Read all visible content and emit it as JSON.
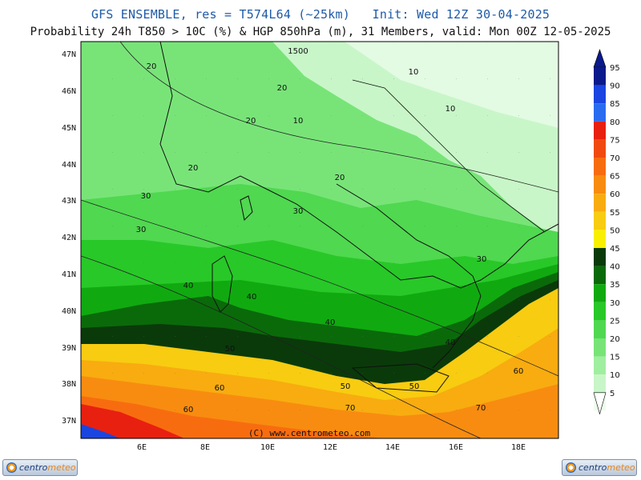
{
  "header": {
    "line1": "GFS ENSEMBLE, res = T574L64 (~25km)   Init: Wed 12Z 30-04-2025",
    "line2": "Probability 24h T850 > 10C (%) & HGP 850hPa (m), 31 Members, valid: Mon 00Z 12-05-2025"
  },
  "map": {
    "lat_labels": [
      "47N",
      "46N",
      "45N",
      "44N",
      "43N",
      "42N",
      "41N",
      "40N",
      "39N",
      "38N",
      "37N"
    ],
    "lon_labels": [
      "6E",
      "8E",
      "10E",
      "12E",
      "14E",
      "16E",
      "18E"
    ],
    "contour_labels": [
      "1500",
      "20",
      "20",
      "20",
      "10",
      "10",
      "10",
      "20",
      "20",
      "30",
      "30",
      "30",
      "30",
      "40",
      "40",
      "40",
      "40",
      "50",
      "50",
      "50",
      "60",
      "60",
      "60",
      "70",
      "70"
    ],
    "copyright": "(C) www.centrometeo.com"
  },
  "colorbar": {
    "ticks": [
      "95",
      "90",
      "85",
      "80",
      "75",
      "70",
      "65",
      "60",
      "55",
      "50",
      "45",
      "40",
      "35",
      "30",
      "25",
      "20",
      "15",
      "10",
      "5"
    ],
    "colors": [
      "#0a1a8c",
      "#1a45e0",
      "#2a6cf0",
      "#e82010",
      "#f04a10",
      "#f86c10",
      "#f88c10",
      "#f8ac10",
      "#f8cc10",
      "#f8f000",
      "#0a3a0a",
      "#0a6a0a",
      "#10aa10",
      "#28c828",
      "#50d850",
      "#78e478",
      "#a0eea0",
      "#c8f6c8",
      "#eefcee"
    ]
  },
  "logos": {
    "left": {
      "part1": "centro",
      "part2": "meteo"
    },
    "right": {
      "part1": "centro",
      "part2": "meteo"
    }
  }
}
